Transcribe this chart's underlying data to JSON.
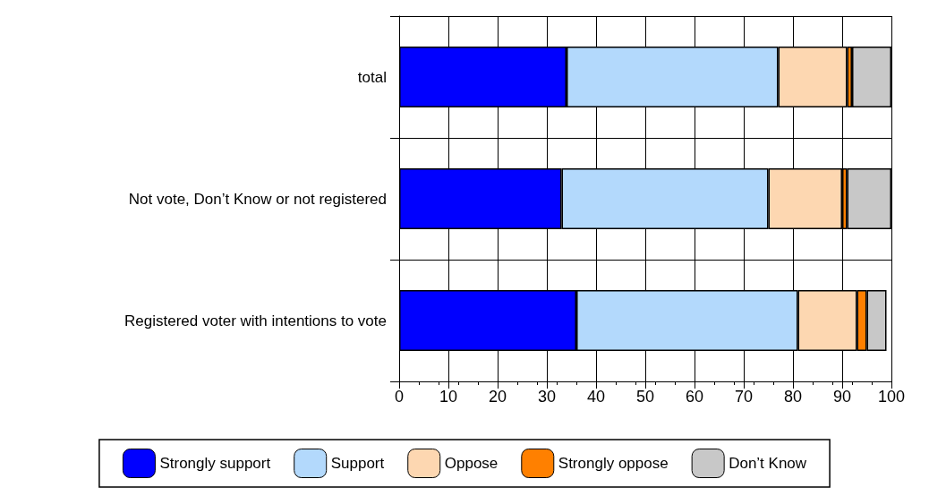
{
  "chart_data": {
    "type": "bar",
    "orientation": "horizontal",
    "stacked": true,
    "categories": [
      "total",
      "Not vote, Don’t Know or not registered",
      "Registered voter with intentions to vote"
    ],
    "series": [
      {
        "name": "Strongly support",
        "color": "#0000ff",
        "values": [
          34,
          33,
          36
        ]
      },
      {
        "name": "Support",
        "color": "#b3d9fc",
        "values": [
          43,
          42,
          45
        ]
      },
      {
        "name": "Oppose",
        "color": "#fdd7b1",
        "values": [
          14,
          15,
          12
        ]
      },
      {
        "name": "Strongly oppose",
        "color": "#ff8000",
        "values": [
          1,
          1,
          2
        ]
      },
      {
        "name": "Don’t Know",
        "color": "#c8c8c8",
        "values": [
          8,
          9,
          4
        ]
      }
    ],
    "xlim": [
      0,
      100
    ],
    "xticks": [
      0,
      10,
      20,
      30,
      40,
      50,
      60,
      70,
      80,
      90,
      100
    ],
    "grid": true,
    "legend": "bottom"
  }
}
